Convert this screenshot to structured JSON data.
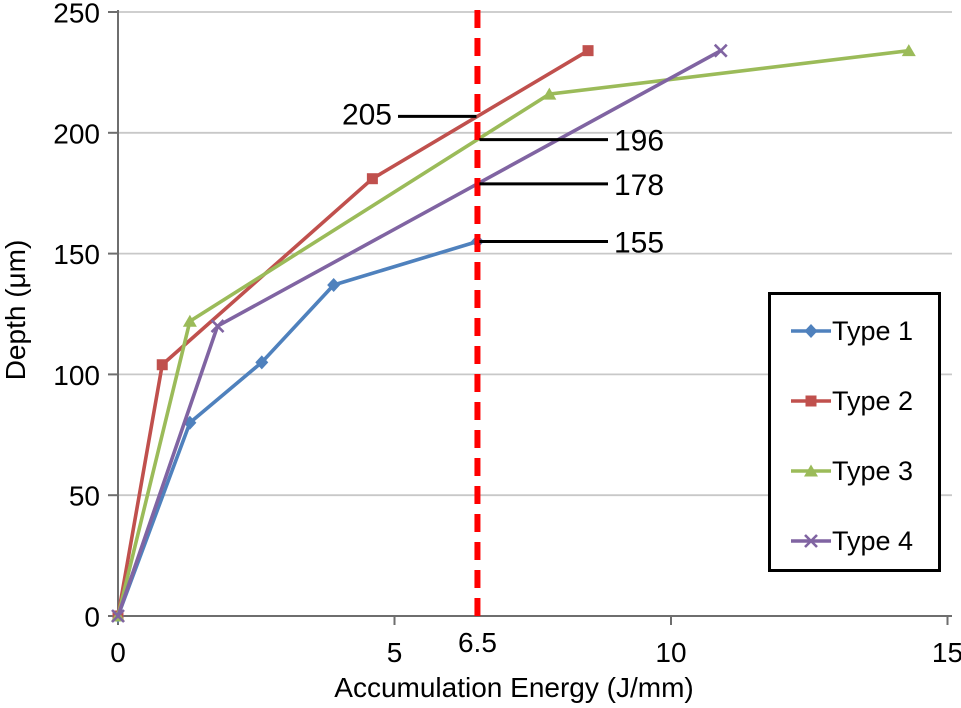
{
  "chart_data": {
    "type": "line",
    "title": "",
    "xlabel": "Accumulation Energy (J/mm)",
    "ylabel": "Depth (μm)",
    "xlim": [
      0,
      15
    ],
    "ylim": [
      0,
      250
    ],
    "x_ticks": [
      0,
      5,
      10,
      15
    ],
    "y_ticks": [
      0,
      50,
      100,
      150,
      200,
      250
    ],
    "grid": "horizontal",
    "legend_position": "right-middle",
    "reference_line": {
      "x": 6.5,
      "label": "6.5",
      "color": "#FF0000",
      "style": "dashed"
    },
    "series": [
      {
        "name": "Type 1",
        "color": "#4F81BD",
        "marker": "diamond",
        "points": [
          [
            0,
            0
          ],
          [
            1.3,
            80
          ],
          [
            2.6,
            105
          ],
          [
            3.9,
            137
          ],
          [
            6.5,
            155
          ]
        ]
      },
      {
        "name": "Type 2",
        "color": "#C0504D",
        "marker": "square",
        "points": [
          [
            0,
            0
          ],
          [
            0.8,
            104
          ],
          [
            4.6,
            181
          ],
          [
            8.5,
            234
          ]
        ]
      },
      {
        "name": "Type 3",
        "color": "#9BBB59",
        "marker": "triangle",
        "points": [
          [
            0,
            0
          ],
          [
            1.3,
            122
          ],
          [
            7.8,
            216
          ],
          [
            14.3,
            234
          ]
        ]
      },
      {
        "name": "Type 4",
        "color": "#8064A2",
        "marker": "x",
        "points": [
          [
            0,
            0
          ],
          [
            1.8,
            120
          ],
          [
            10.9,
            234
          ]
        ]
      }
    ],
    "annotations": [
      {
        "text": "205",
        "value": 205,
        "series": "Type 2",
        "side": "left"
      },
      {
        "text": "196",
        "value": 196,
        "series": "Type 3",
        "side": "right"
      },
      {
        "text": "178",
        "value": 178,
        "series": "Type 4",
        "side": "right"
      },
      {
        "text": "155",
        "value": 155,
        "series": "Type 1",
        "side": "right"
      }
    ]
  },
  "colors": {
    "background": "#FFFFFF",
    "axis": "#6E6E6E",
    "grid": "#C8C8C8",
    "annotation_line": "#000000",
    "text": "#000000",
    "legend_border": "#000000"
  }
}
